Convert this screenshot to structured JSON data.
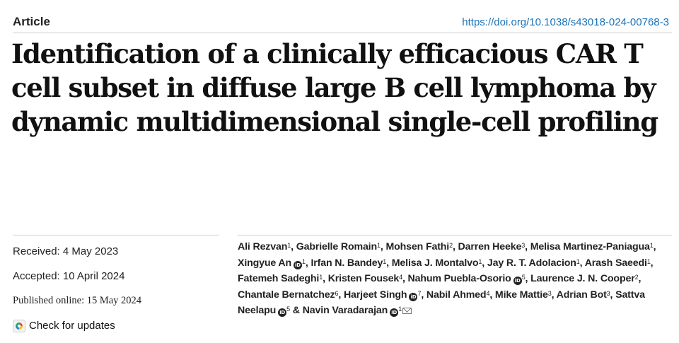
{
  "header": {
    "article_type": "Article",
    "doi": "https://doi.org/10.1038/s43018-024-00768-3"
  },
  "title": "Identification of a clinically efficacious CAR T cell subset in diffuse large B cell lymphoma by dynamic multidimensional single-cell profiling",
  "meta": {
    "received": "Received: 4 May 2023",
    "accepted": "Accepted: 10 April 2024",
    "published": "Published online: 15 May 2024",
    "check_updates": "Check for updates"
  },
  "orcid_label": "iD",
  "authors": [
    {
      "name": "Ali Rezvan",
      "aff": "1",
      "orcid": false
    },
    {
      "name": "Gabrielle Romain",
      "aff": "1",
      "orcid": false
    },
    {
      "name": "Mohsen Fathi",
      "aff": "2",
      "orcid": false
    },
    {
      "name": "Darren Heeke",
      "aff": "3",
      "orcid": false
    },
    {
      "name": "Melisa Martinez-Paniagua",
      "aff": "1",
      "orcid": false
    },
    {
      "name": "Xingyue An",
      "aff": "1",
      "orcid": true
    },
    {
      "name": "Irfan N. Bandey",
      "aff": "1",
      "orcid": false
    },
    {
      "name": "Melisa J. Montalvo",
      "aff": "1",
      "orcid": false
    },
    {
      "name": "Jay R. T. Adolacion",
      "aff": "1",
      "orcid": false
    },
    {
      "name": "Arash Saeedi",
      "aff": "1",
      "orcid": false
    },
    {
      "name": "Fatemeh Sadeghi",
      "aff": "1",
      "orcid": false
    },
    {
      "name": "Kristen Fousek",
      "aff": "4",
      "orcid": false
    },
    {
      "name": "Nahum Puebla-Osorio",
      "aff": "5",
      "orcid": true
    },
    {
      "name": "Laurence J. N. Cooper",
      "aff": "2",
      "orcid": false
    },
    {
      "name": "Chantale Bernatchez",
      "aff": "6",
      "orcid": false
    },
    {
      "name": "Harjeet Singh",
      "aff": "7",
      "orcid": true
    },
    {
      "name": "Nabil Ahmed",
      "aff": "4",
      "orcid": false
    },
    {
      "name": "Mike Mattie",
      "aff": "3",
      "orcid": false
    },
    {
      "name": "Adrian Bot",
      "aff": "3",
      "orcid": false
    },
    {
      "name": "Sattva Neelapu",
      "aff": "5",
      "orcid": true
    },
    {
      "name": "Navin Varadarajan",
      "aff": "1",
      "orcid": true,
      "corresponding": true
    }
  ]
}
